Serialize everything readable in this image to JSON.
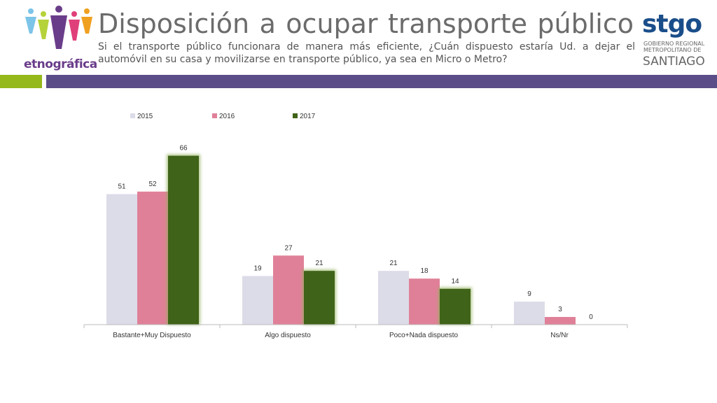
{
  "header": {
    "title": "Disposición a ocupar transporte público",
    "subtitle": "Si el transporte público funcionara de manera más eficiente, ¿Cuán dispuesto estaría Ud. a dejar el automóvil en su casa y movilizarse en transporte público, ya sea en Micro o Metro?"
  },
  "logos": {
    "left_text": "etnográfica",
    "right_main": "stgo",
    "right_sub": "GOBIERNO REGIONAL METROPOLITANO DE",
    "right_city": "SANTIAGO"
  },
  "colors": {
    "accent_green": "#95b81a",
    "accent_purple": "#5b4d88"
  },
  "chart_data": {
    "type": "bar",
    "categories": [
      "Bastante+Muy Dispuesto",
      "Algo dispuesto",
      "Poco+Nada dispuesto",
      "Ns/Nr"
    ],
    "series": [
      {
        "name": "2015",
        "values": [
          51,
          19,
          21,
          9
        ],
        "color": "#dcdce8"
      },
      {
        "name": "2016",
        "values": [
          52,
          27,
          18,
          3
        ],
        "color": "#e08098"
      },
      {
        "name": "2017",
        "values": [
          66,
          21,
          14,
          0
        ],
        "color": "#3f6318"
      }
    ],
    "title": "",
    "xlabel": "",
    "ylabel": "",
    "ylim": [
      0,
      70
    ],
    "legend": "top-left",
    "grid": false
  }
}
